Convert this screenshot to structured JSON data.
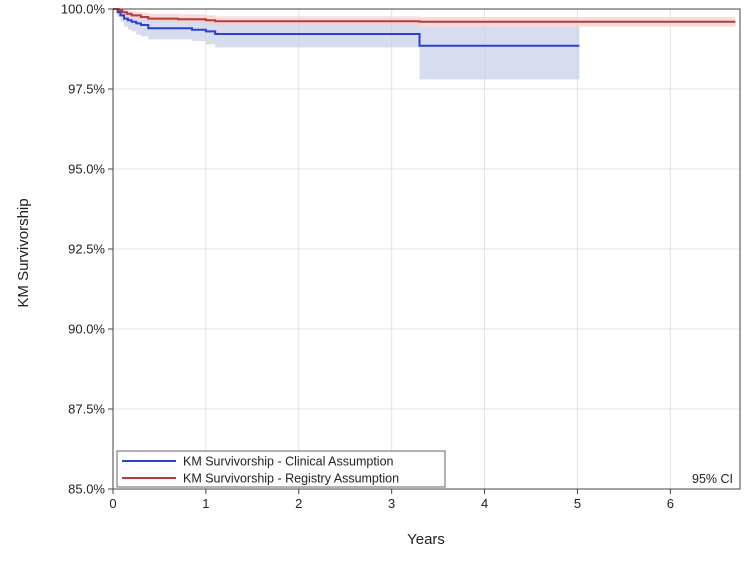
{
  "chart_data": {
    "type": "line",
    "xlabel": "Years",
    "ylabel": "KM Survivorship",
    "xlim": [
      0,
      6.75
    ],
    "ylim": [
      85.0,
      100.0
    ],
    "x_ticks": [
      0,
      1,
      2,
      3,
      4,
      5,
      6
    ],
    "x_tick_labels": [
      "0",
      "1",
      "2",
      "3",
      "4",
      "5",
      "6"
    ],
    "y_ticks": [
      85.0,
      87.5,
      90.0,
      92.5,
      95.0,
      97.5,
      100.0
    ],
    "y_tick_labels": [
      "85.0%",
      "87.5%",
      "90.0%",
      "92.5%",
      "95.0%",
      "97.5%",
      "100.0%"
    ],
    "grid": true,
    "legend_position": "bottom-left",
    "annotation": "95% CI",
    "series": [
      {
        "name": "KM Survivorship - Clinical Assumption",
        "color": "#2b3fd1",
        "band_color": "#c6cde8",
        "step": true,
        "x": [
          0,
          0.05,
          0.08,
          0.12,
          0.16,
          0.2,
          0.25,
          0.3,
          0.38,
          0.85,
          1.0,
          1.1,
          3.3,
          5.02
        ],
        "y": [
          100.0,
          99.9,
          99.8,
          99.7,
          99.65,
          99.6,
          99.55,
          99.5,
          99.4,
          99.35,
          99.3,
          99.22,
          98.85,
          98.85
        ],
        "ci_lower": [
          100.0,
          99.75,
          99.6,
          99.45,
          99.35,
          99.3,
          99.2,
          99.15,
          99.05,
          99.0,
          98.9,
          98.8,
          97.8,
          97.8
        ],
        "ci_upper": [
          100.0,
          100.0,
          99.97,
          99.93,
          99.88,
          99.85,
          99.82,
          99.78,
          99.72,
          99.68,
          99.62,
          99.55,
          99.45,
          99.45
        ]
      },
      {
        "name": "KM Survivorship - Registry Assumption",
        "color": "#b8383c",
        "band_color": "#f3cdcb",
        "step": true,
        "x": [
          0,
          0.06,
          0.1,
          0.15,
          0.2,
          0.3,
          0.38,
          0.7,
          1.0,
          1.1,
          3.3,
          6.7
        ],
        "y": [
          100.0,
          99.95,
          99.9,
          99.85,
          99.8,
          99.75,
          99.7,
          99.68,
          99.65,
          99.62,
          99.6,
          99.6
        ],
        "ci_lower": [
          100.0,
          99.85,
          99.8,
          99.75,
          99.7,
          99.65,
          99.6,
          99.57,
          99.53,
          99.5,
          99.45,
          99.45
        ],
        "ci_upper": [
          100.0,
          100.0,
          99.98,
          99.95,
          99.92,
          99.88,
          99.85,
          99.83,
          99.8,
          99.77,
          99.75,
          99.75
        ]
      }
    ]
  }
}
